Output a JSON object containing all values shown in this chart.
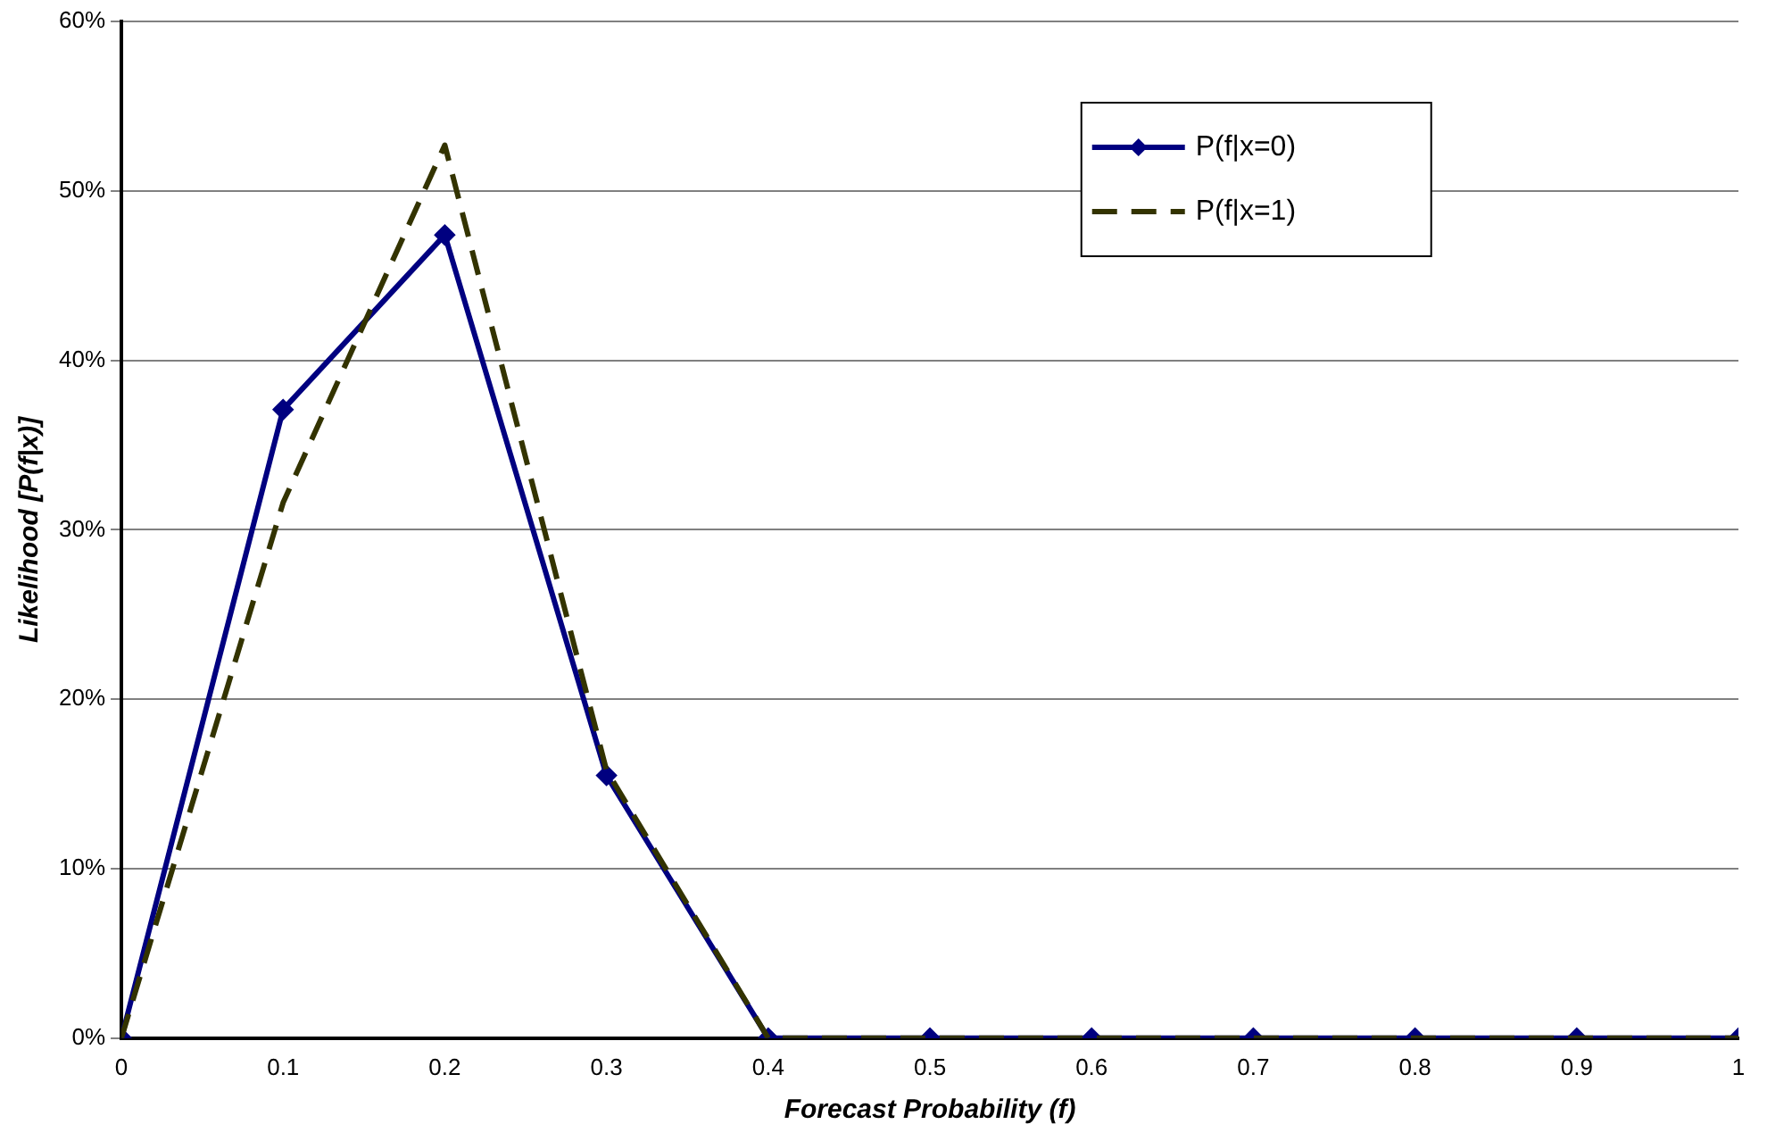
{
  "chart_data": {
    "type": "line",
    "xlabel": "Forecast Probability (f)",
    "ylabel": "Likelihood [P(f|x)]",
    "x": [
      0,
      0.1,
      0.2,
      0.3,
      0.4,
      0.5,
      0.6,
      0.7,
      0.8,
      0.9,
      1
    ],
    "series": [
      {
        "name": "P(f|x=0)",
        "color": "#000080",
        "marker": "diamond",
        "line_style": "solid",
        "values": [
          0,
          37.1,
          47.4,
          15.5,
          0,
          0,
          0,
          0,
          0,
          0,
          0
        ]
      },
      {
        "name": "P(f|x=1)",
        "color": "#333300",
        "marker": "none",
        "line_style": "dashed",
        "values": [
          0,
          31.6,
          52.7,
          15.8,
          0,
          0,
          0,
          0,
          0,
          0,
          0
        ]
      }
    ],
    "xlim": [
      0,
      1
    ],
    "xticks": [
      0,
      0.1,
      0.2,
      0.3,
      0.4,
      0.5,
      0.6,
      0.7,
      0.8,
      0.9,
      1
    ],
    "ylim": [
      0,
      60
    ],
    "yticks": [
      {
        "value": 0,
        "label": "0%"
      },
      {
        "value": 10,
        "label": "10%"
      },
      {
        "value": 20,
        "label": "20%"
      },
      {
        "value": 30,
        "label": "30%"
      },
      {
        "value": 40,
        "label": "40%"
      },
      {
        "value": 50,
        "label": "50%"
      },
      {
        "value": 60,
        "label": "60%"
      }
    ],
    "grid": "y",
    "legend": "top right"
  }
}
